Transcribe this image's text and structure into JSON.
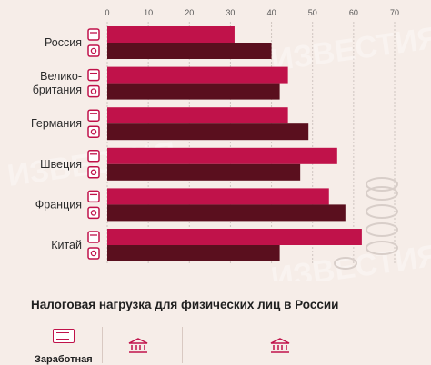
{
  "chart_data": {
    "type": "bar",
    "categories": [
      "Россия",
      "Велико-\nбритания",
      "Германия",
      "Швеция",
      "Франция",
      "Китай"
    ],
    "series": [
      {
        "values": [
          31,
          44,
          44,
          56,
          54,
          62
        ]
      },
      {
        "values": [
          40,
          42,
          49,
          47,
          58,
          42
        ]
      }
    ],
    "xticks": [
      0,
      10,
      20,
      30,
      40,
      50,
      60,
      70
    ],
    "xlim": [
      0,
      70
    ],
    "xlabel": "",
    "ylabel": "",
    "grid": true,
    "colors": {
      "series1": "#c0124a",
      "series2": "#5a0f1e",
      "grid": "#cfc5c0",
      "label": "#2b2b2b",
      "icon": "#c0124a"
    },
    "icons": {
      "series1": "bank-card-icon",
      "series2": "safe-icon"
    },
    "watermark": "ИЗВЕСТИЯ"
  },
  "section": {
    "title": "Налоговая нагрузка для физических лиц в России",
    "salary_label": "Заработная"
  }
}
